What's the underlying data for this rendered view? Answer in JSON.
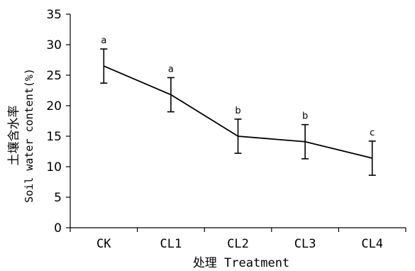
{
  "chart_data": {
    "type": "line",
    "xlabel": "处理 Treatment",
    "ylabel_line1": "土壤含水率",
    "ylabel_line2": "Soil water content(%)",
    "categories": [
      "CK",
      "CL1",
      "CL2",
      "CL3",
      "CL4"
    ],
    "series": [
      {
        "values": [
          26.5,
          21.8,
          15.0,
          14.1,
          11.4
        ],
        "error": [
          2.8,
          2.8,
          2.8,
          2.8,
          2.8
        ],
        "significance": [
          "a",
          "a",
          "b",
          "b",
          "c"
        ]
      }
    ],
    "ylim": [
      0,
      35
    ],
    "yticks": [
      "0",
      "5",
      "10",
      "15",
      "20",
      "25",
      "30",
      "35"
    ],
    "grid": false,
    "line_color": "#000000"
  }
}
